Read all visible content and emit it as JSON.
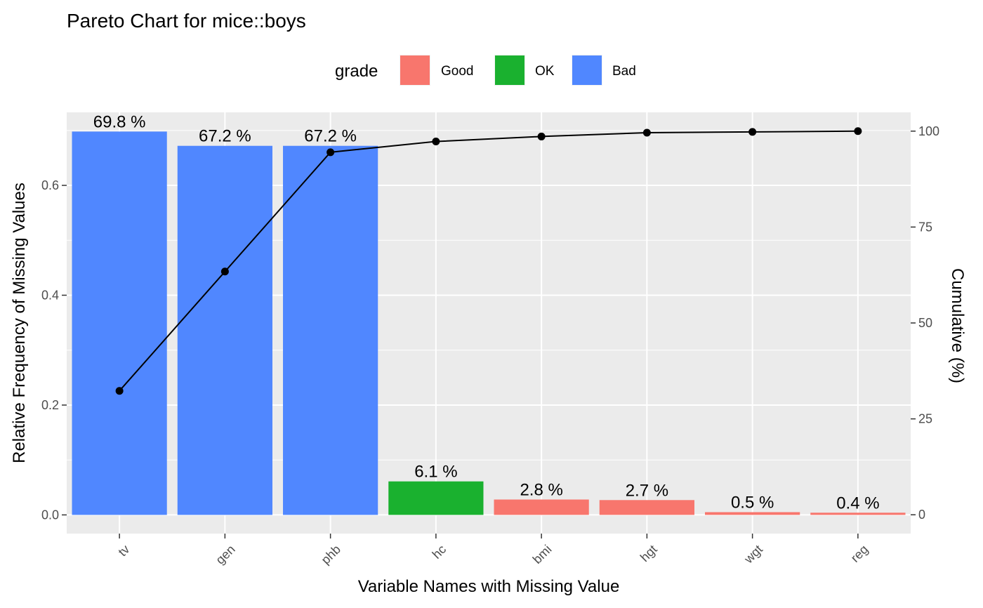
{
  "chart_data": {
    "type": "bar",
    "title": "Pareto Chart for mice::boys",
    "xlabel": "Variable Names with Missing Value",
    "ylabel": "Relative Frequency of Missing Values",
    "y2label": "Cumulative (%)",
    "categories": [
      "tv",
      "gen",
      "phb",
      "hc",
      "bmi",
      "hgt",
      "wgt",
      "reg"
    ],
    "values": [
      0.698,
      0.672,
      0.672,
      0.061,
      0.028,
      0.027,
      0.005,
      0.004
    ],
    "bar_labels": [
      "69.8 %",
      "67.2 %",
      "67.2 %",
      "6.1 %",
      "2.8 %",
      "2.7 %",
      "0.5 %",
      "0.4 %"
    ],
    "grades": [
      "Bad",
      "Bad",
      "Bad",
      "OK",
      "Good",
      "Good",
      "Good",
      "Good"
    ],
    "cumulative": [
      32.3,
      63.4,
      94.5,
      97.3,
      98.6,
      99.6,
      99.8,
      100.0
    ],
    "ylim": [
      -0.034,
      0.733
    ],
    "y_ticks": [
      0.0,
      0.2,
      0.4,
      0.6
    ],
    "y_tick_labels": [
      "0.0",
      "0.2",
      "0.4",
      "0.6"
    ],
    "y2lim": [
      -4.9,
      104.9
    ],
    "y2_ticks": [
      0,
      25,
      50,
      75,
      100
    ],
    "y2_tick_labels": [
      "0",
      "25",
      "50",
      "75",
      "100"
    ],
    "legend": {
      "title": "grade",
      "placement": "top",
      "entries": [
        {
          "label": "Good",
          "color": "#F8766D"
        },
        {
          "label": "OK",
          "color": "#1AB12F"
        },
        {
          "label": "Bad",
          "color": "#5087FF"
        }
      ]
    },
    "colors": {
      "Good": "#F8766D",
      "OK": "#1AB12F",
      "Bad": "#5087FF",
      "panel": "#EBEBEB",
      "grid": "#FFFFFF",
      "line": "#000000"
    },
    "grid": true
  }
}
